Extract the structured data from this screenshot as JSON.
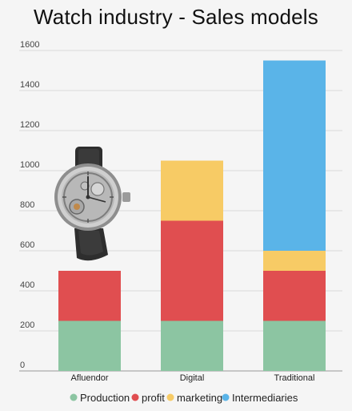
{
  "chart_data": {
    "type": "bar",
    "stacked": true,
    "title": "Watch industry - Sales models",
    "categories": [
      "Afluendor",
      "Digital",
      "Traditional"
    ],
    "series": [
      {
        "name": "Production",
        "color": "#8cc5a2",
        "values": [
          250,
          250,
          250
        ]
      },
      {
        "name": "profit",
        "color": "#e04e50",
        "values": [
          250,
          500,
          250
        ]
      },
      {
        "name": "marketing",
        "color": "#f7cb65",
        "values": [
          0,
          300,
          100
        ]
      },
      {
        "name": "Intermediaries",
        "color": "#5ab4e8",
        "values": [
          0,
          0,
          950
        ]
      }
    ],
    "y_ticks": [
      "0",
      "200",
      "400",
      "600",
      "800",
      "1000",
      "1200",
      "1400",
      "1600"
    ],
    "ylim": [
      0,
      1600
    ],
    "grid": true,
    "legend_position": "bottom",
    "image": "wristwatch-photo"
  }
}
